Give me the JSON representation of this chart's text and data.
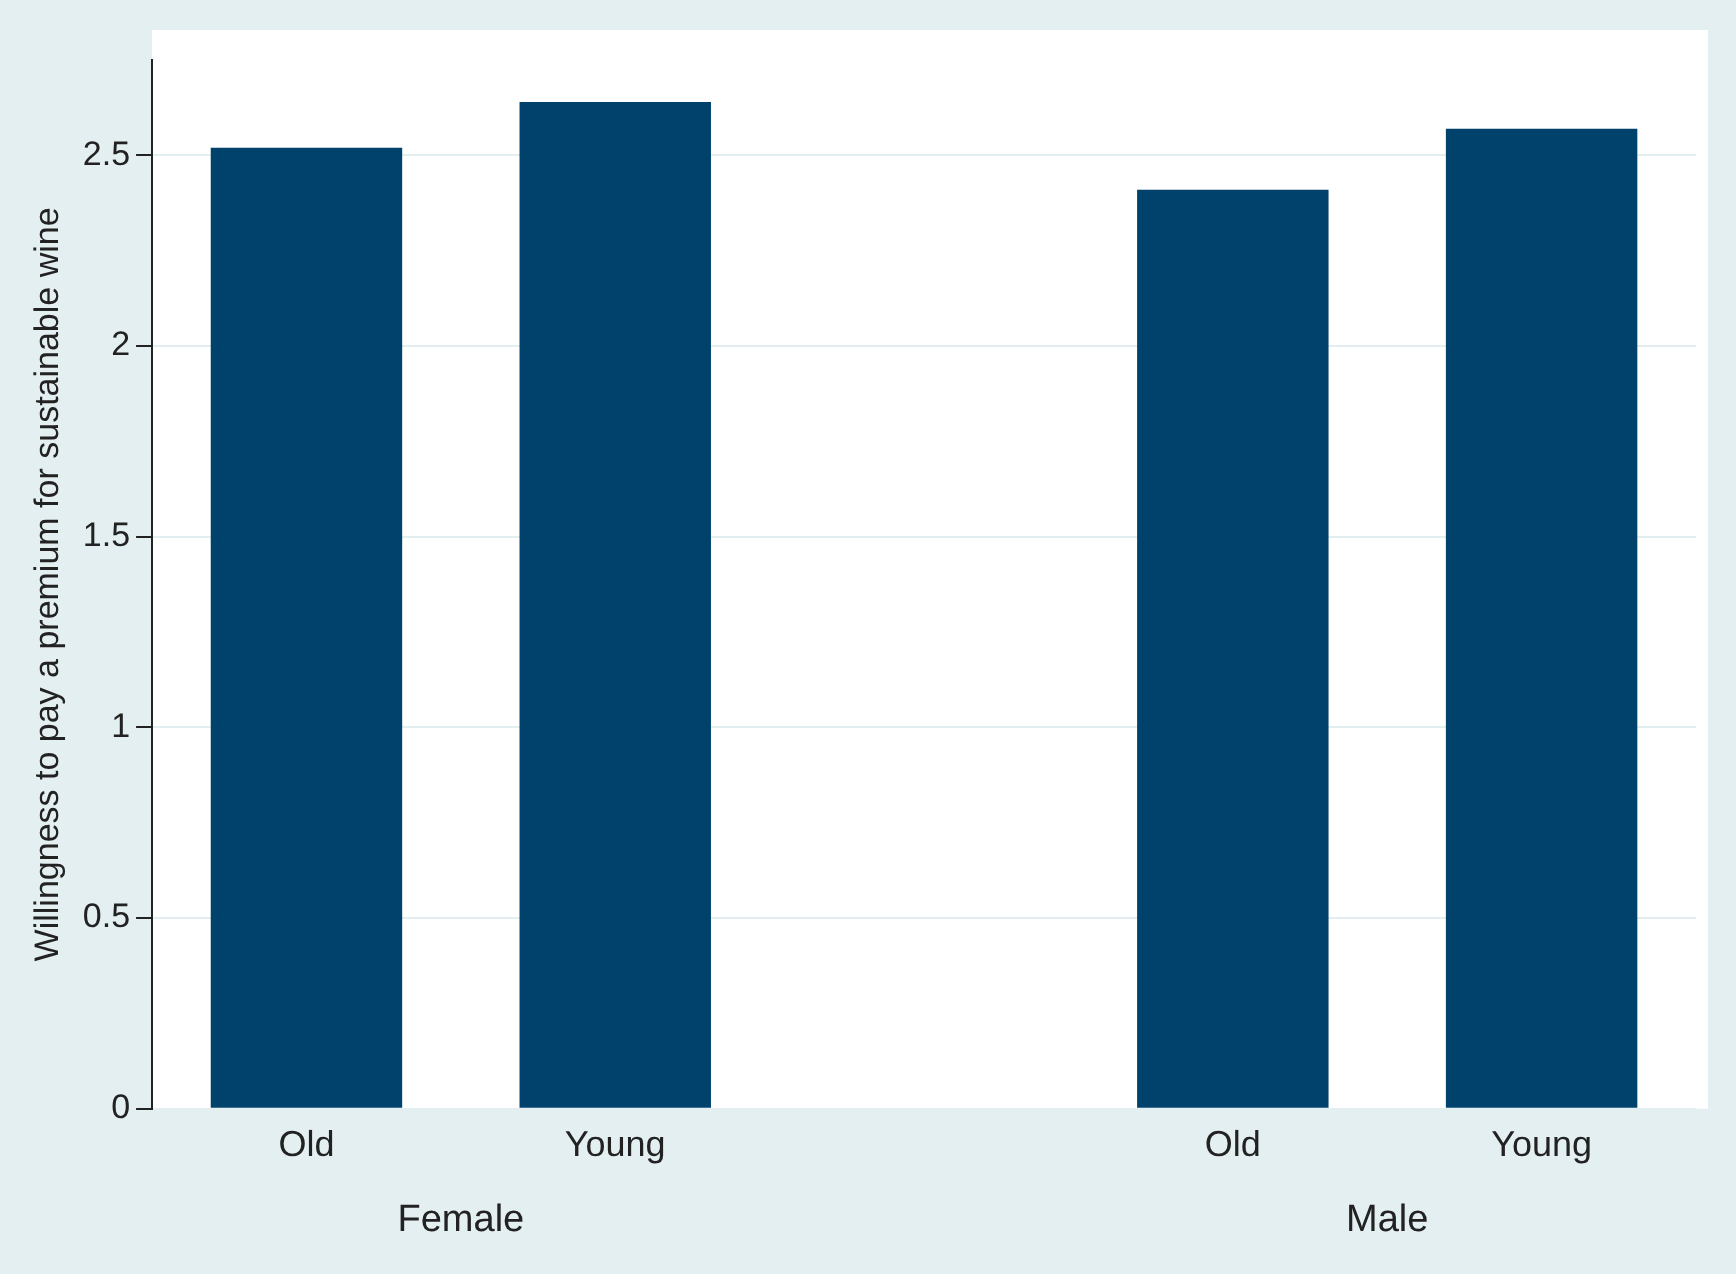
{
  "chart_data": {
    "type": "bar",
    "ylabel": "Willingness to pay a premium for sustainable wine",
    "categories": [
      "Old",
      "Young",
      null,
      "Old",
      "Young"
    ],
    "values": [
      2.52,
      2.64,
      null,
      2.41,
      2.57
    ],
    "color": "#00426b",
    "ylim": [
      0,
      2.75
    ],
    "yticks": [
      0,
      0.5,
      1,
      1.5,
      2,
      2.5
    ],
    "grid": "y",
    "annotations": [
      "Female",
      "Male"
    ]
  }
}
